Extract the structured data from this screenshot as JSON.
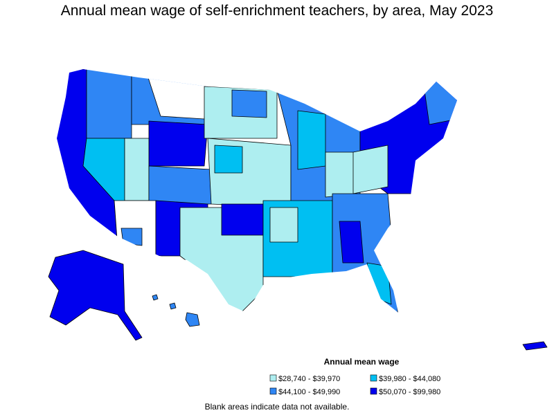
{
  "title": "Annual mean wage of self-enrichment teachers, by area, May 2023",
  "legend": {
    "title": "Annual mean wage",
    "items": [
      {
        "label": "$28,740 - $39,970",
        "color": "#aeeef0"
      },
      {
        "label": "$39,980 - $44,080",
        "color": "#00bff2"
      },
      {
        "label": "$44,100 - $49,990",
        "color": "#2f86f4"
      },
      {
        "label": "$50,070 - $99,980",
        "color": "#0000ee"
      }
    ]
  },
  "note": "Blank areas indicate data not available."
}
